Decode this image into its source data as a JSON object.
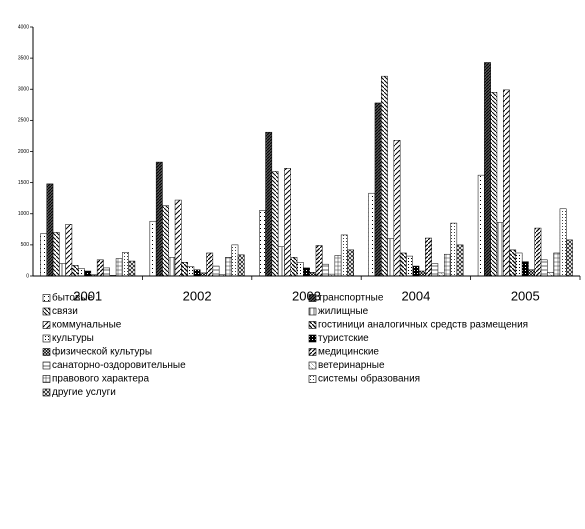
{
  "chart_data": {
    "type": "bar",
    "categories": [
      "2001",
      "2002",
      "2003",
      "2004",
      "2005"
    ],
    "ylim": [
      0,
      4000
    ],
    "yticks": [
      0,
      500,
      1000,
      1500,
      2000,
      2500,
      3000,
      3500,
      4000
    ],
    "series": [
      {
        "name": "бытовые",
        "color": "#000000",
        "values": [
          680,
          880,
          1050,
          1330,
          1620
        ]
      },
      {
        "name": "транспортные",
        "color": "#000000",
        "values": [
          1480,
          1830,
          2310,
          2780,
          3430
        ]
      },
      {
        "name": "связи",
        "color": "#000000",
        "values": [
          700,
          1130,
          1680,
          3210,
          2950
        ]
      },
      {
        "name": "жилищные",
        "color": "#000000",
        "values": [
          200,
          300,
          470,
          600,
          860
        ]
      },
      {
        "name": "коммунальные",
        "color": "#000000",
        "values": [
          830,
          1220,
          1730,
          2180,
          2990
        ]
      },
      {
        "name": "гостиници аналогичных средств размещения",
        "color": "#000000",
        "values": [
          170,
          220,
          300,
          370,
          420
        ]
      },
      {
        "name": "культуры",
        "color": "#000000",
        "values": [
          120,
          150,
          220,
          320,
          370
        ]
      },
      {
        "name": "туристские",
        "color": "#000000",
        "values": [
          80,
          100,
          130,
          160,
          230
        ]
      },
      {
        "name": "физической культуры",
        "color": "#000000",
        "values": [
          20,
          50,
          60,
          80,
          100
        ]
      },
      {
        "name": "медицинские",
        "color": "#000000",
        "values": [
          260,
          370,
          490,
          610,
          770
        ]
      },
      {
        "name": "санаторно-оздоровительные",
        "color": "#000000",
        "values": [
          130,
          160,
          190,
          200,
          260
        ]
      },
      {
        "name": "ветеринарные",
        "color": "#000000",
        "values": [
          10,
          20,
          30,
          50,
          60
        ]
      },
      {
        "name": "правового характера",
        "color": "#000000",
        "values": [
          280,
          300,
          330,
          350,
          370
        ]
      },
      {
        "name": "системы образования",
        "color": "#000000",
        "values": [
          380,
          500,
          660,
          850,
          1080
        ]
      },
      {
        "name": "другие услуги",
        "color": "#000000",
        "values": [
          240,
          340,
          420,
          500,
          580
        ]
      }
    ]
  }
}
